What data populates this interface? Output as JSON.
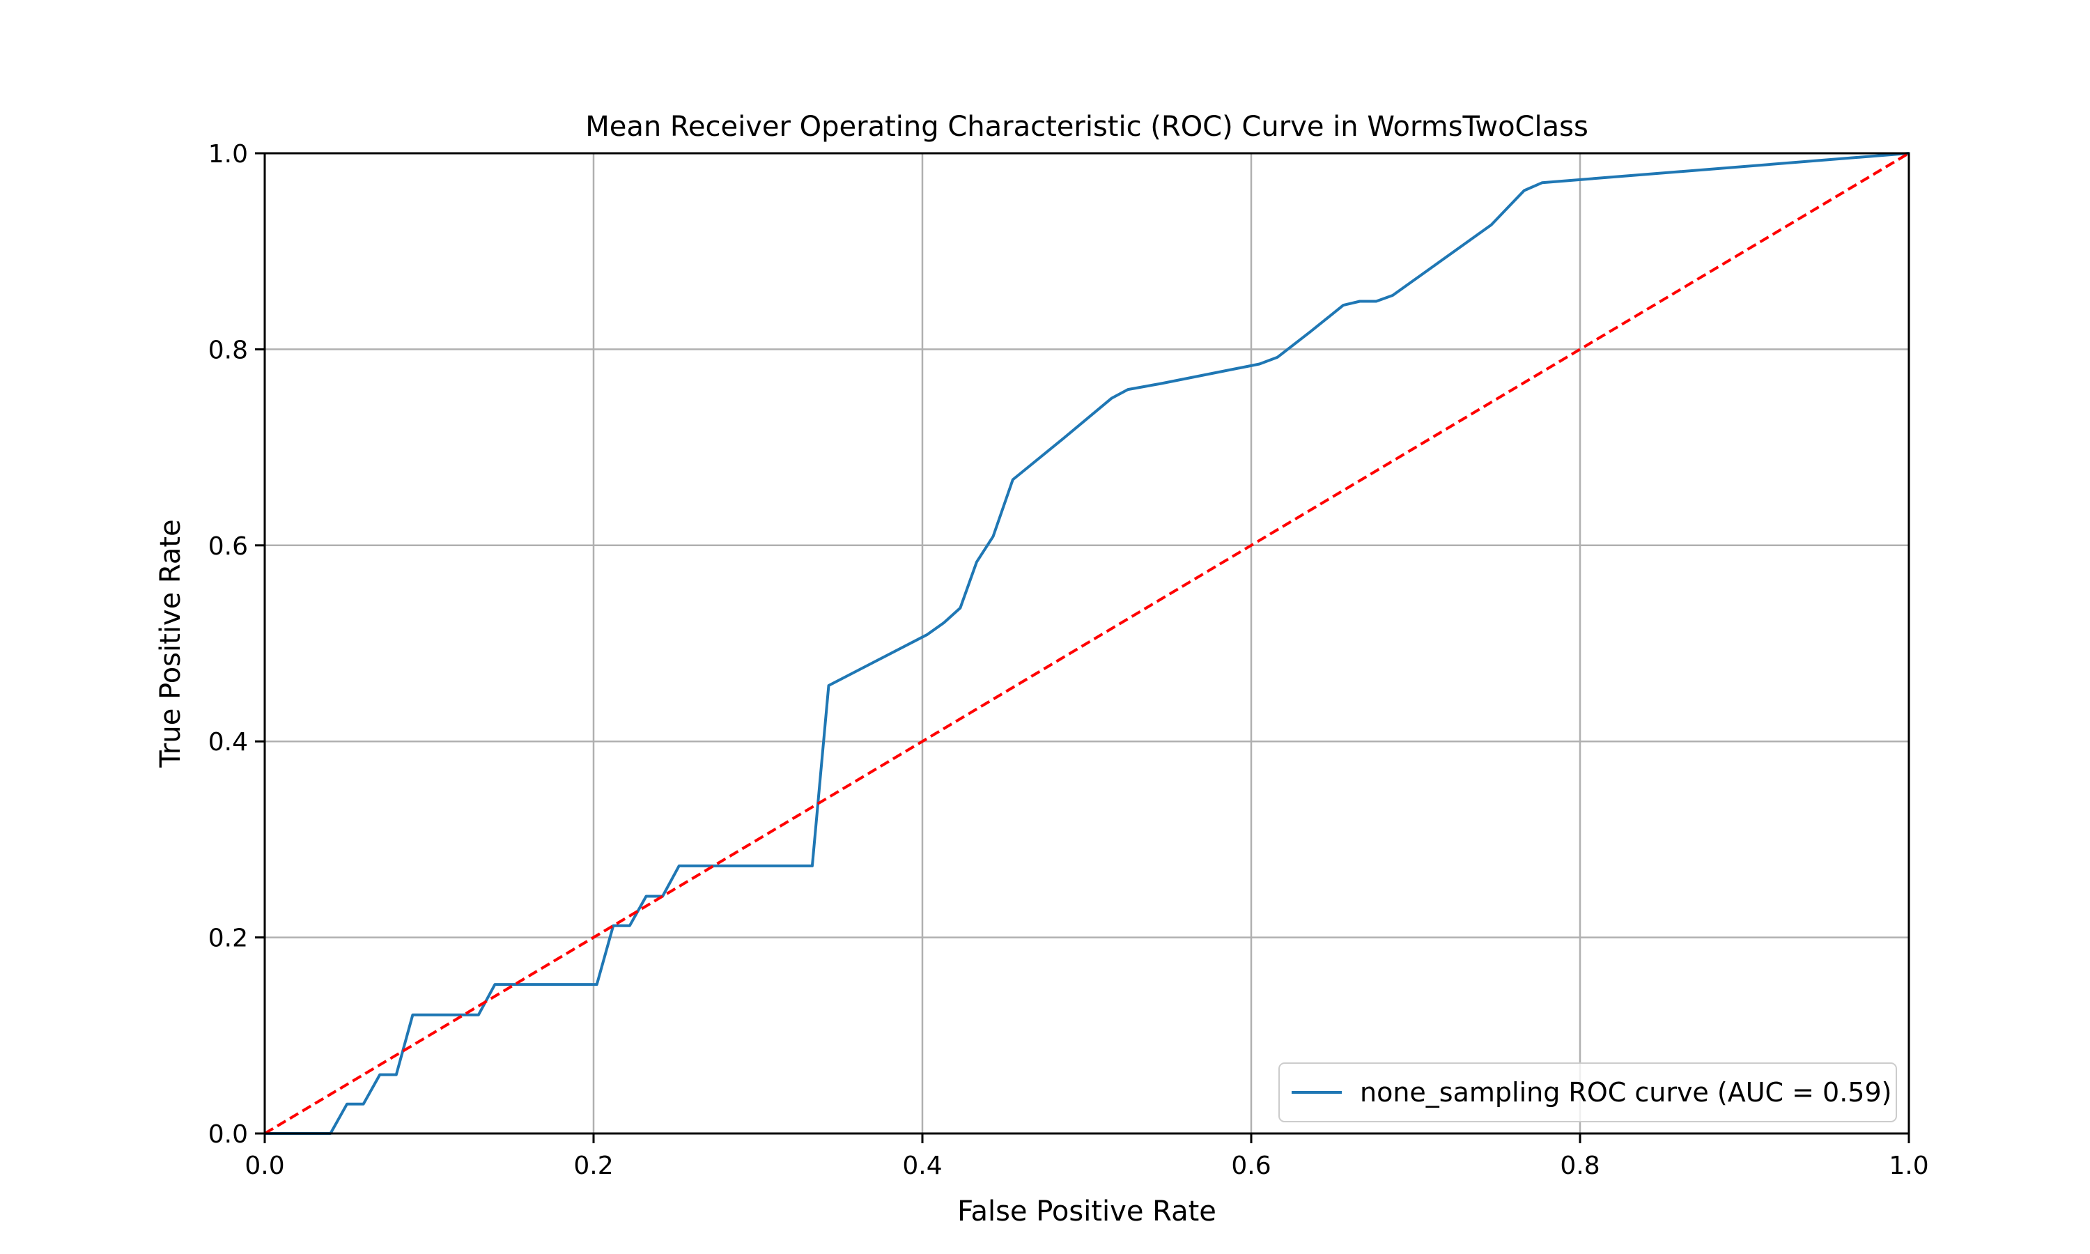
{
  "chart_data": {
    "type": "line",
    "title": "Mean Receiver Operating Characteristic (ROC) Curve in WormsTwoClass",
    "xlabel": "False Positive Rate",
    "ylabel": "True Positive Rate",
    "xlim": [
      0.0,
      1.0
    ],
    "ylim": [
      0.0,
      1.0
    ],
    "x_ticks": [
      "0.0",
      "0.2",
      "0.4",
      "0.6",
      "0.8",
      "1.0"
    ],
    "y_ticks": [
      "0.0",
      "0.2",
      "0.4",
      "0.6",
      "0.8",
      "1.0"
    ],
    "grid": true,
    "legend_position": "lower right",
    "series": [
      {
        "name": "none_sampling ROC curve (AUC = 0.59)",
        "color": "#1f77b4",
        "style": "solid",
        "x": [
          0.0,
          0.04,
          0.05,
          0.06,
          0.07,
          0.08,
          0.09,
          0.12,
          0.13,
          0.14,
          0.15,
          0.202,
          0.212,
          0.222,
          0.232,
          0.242,
          0.252,
          0.262,
          0.272,
          0.333,
          0.343,
          0.373,
          0.403,
          0.413,
          0.423,
          0.433,
          0.443,
          0.455,
          0.485,
          0.515,
          0.525,
          0.545,
          0.605,
          0.616,
          0.636,
          0.656,
          0.666,
          0.676,
          0.686,
          0.716,
          0.746,
          0.766,
          0.777,
          1.0
        ],
        "y": [
          0.0,
          0.0,
          0.03,
          0.03,
          0.06,
          0.06,
          0.121,
          0.121,
          0.121,
          0.152,
          0.152,
          0.152,
          0.212,
          0.212,
          0.242,
          0.242,
          0.273,
          0.273,
          0.273,
          0.273,
          0.457,
          0.483,
          0.509,
          0.521,
          0.536,
          0.583,
          0.609,
          0.667,
          0.708,
          0.75,
          0.759,
          0.765,
          0.785,
          0.792,
          0.818,
          0.845,
          0.849,
          0.849,
          0.855,
          0.891,
          0.927,
          0.962,
          0.97,
          1.0
        ]
      },
      {
        "name": "",
        "color": "#ff0000",
        "style": "dashed",
        "x": [
          0.0,
          1.0
        ],
        "y": [
          0.0,
          1.0
        ]
      }
    ]
  }
}
